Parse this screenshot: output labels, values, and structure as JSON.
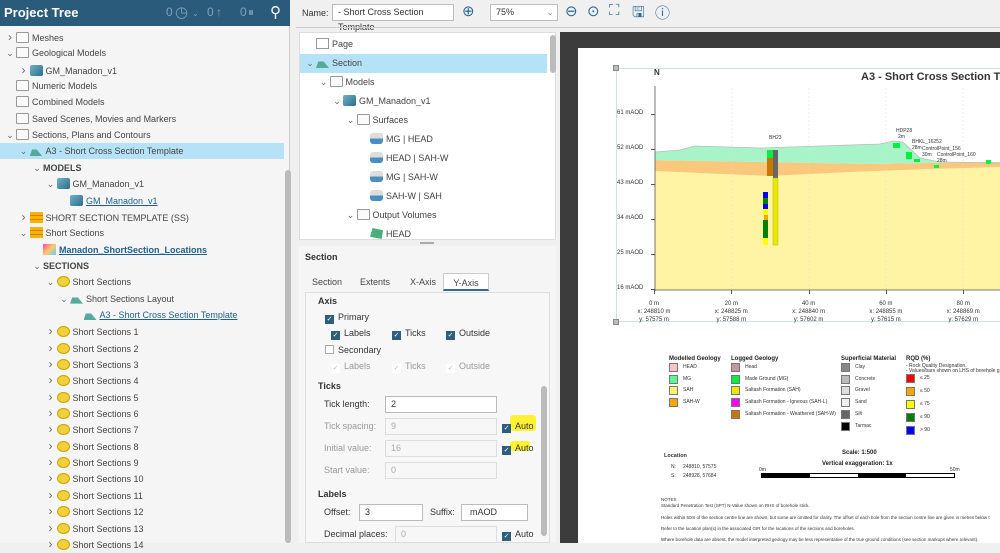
{
  "project_tree": {
    "title": "Project Tree",
    "counters": [
      "0",
      "0",
      "0"
    ],
    "rows": [
      {
        "label": "Meshes",
        "level": 0,
        "chev": "closed",
        "icon": "folder"
      },
      {
        "label": "Geological Models",
        "level": 0,
        "chev": "open",
        "icon": "folder"
      },
      {
        "label": "GM_Manadon_v1",
        "level": 1,
        "chev": "closed",
        "icon": "model"
      },
      {
        "label": "Numeric Models",
        "level": 0,
        "chev": "none",
        "icon": "folder"
      },
      {
        "label": "Combined Models",
        "level": 0,
        "chev": "none",
        "icon": "folder"
      },
      {
        "label": "Saved Scenes, Movies and Markers",
        "level": 0,
        "chev": "none",
        "icon": "folder"
      },
      {
        "label": "Sections, Plans and Contours",
        "level": 0,
        "chev": "open",
        "icon": "folder"
      },
      {
        "label": "A3 - Short Cross Section Template",
        "level": 1,
        "chev": "open",
        "icon": "section",
        "selected": true
      },
      {
        "label": "MODELS",
        "level": 2,
        "chev": "open",
        "icon": "none",
        "style": "bold"
      },
      {
        "label": "GM_Manadon_v1",
        "level": 3,
        "chev": "open",
        "icon": "model"
      },
      {
        "label": "GM_Manadon_v1",
        "level": 4,
        "chev": "none",
        "icon": "model",
        "style": "link"
      },
      {
        "label": "SHORT SECTION TEMPLATE (SS)",
        "level": 1,
        "chev": "closed",
        "icon": "stack"
      },
      {
        "label": "Short Sections",
        "level": 1,
        "chev": "open",
        "icon": "stack"
      },
      {
        "label": "Manadon_ShortSection_Locations",
        "level": 2,
        "chev": "none",
        "icon": "map",
        "style": "boldlink"
      },
      {
        "label": "SECTIONS",
        "level": 2,
        "chev": "open",
        "icon": "none",
        "style": "bold"
      },
      {
        "label": "Short Sections",
        "level": 3,
        "chev": "open",
        "icon": "ss"
      },
      {
        "label": "Short Sections Layout",
        "level": 4,
        "chev": "open",
        "icon": "section"
      },
      {
        "label": "A3 - Short Cross Section Template",
        "level": 5,
        "chev": "none",
        "icon": "section",
        "style": "link"
      },
      {
        "label": "Short Sections 1",
        "level": 3,
        "chev": "closed",
        "icon": "ss"
      },
      {
        "label": "Short Sections 2",
        "level": 3,
        "chev": "closed",
        "icon": "ss"
      },
      {
        "label": "Short Sections 3",
        "level": 3,
        "chev": "closed",
        "icon": "ss"
      },
      {
        "label": "Short Sections 4",
        "level": 3,
        "chev": "closed",
        "icon": "ss"
      },
      {
        "label": "Short Sections 5",
        "level": 3,
        "chev": "closed",
        "icon": "ss"
      },
      {
        "label": "Short Sections 6",
        "level": 3,
        "chev": "closed",
        "icon": "ss"
      },
      {
        "label": "Short Sections 7",
        "level": 3,
        "chev": "closed",
        "icon": "ss"
      },
      {
        "label": "Short Sections 8",
        "level": 3,
        "chev": "closed",
        "icon": "ss"
      },
      {
        "label": "Short Sections 9",
        "level": 3,
        "chev": "closed",
        "icon": "ss"
      },
      {
        "label": "Short Sections 10",
        "level": 3,
        "chev": "closed",
        "icon": "ss"
      },
      {
        "label": "Short Sections 11",
        "level": 3,
        "chev": "closed",
        "icon": "ss"
      },
      {
        "label": "Short Sections 12",
        "level": 3,
        "chev": "closed",
        "icon": "ss"
      },
      {
        "label": "Short Sections 13",
        "level": 3,
        "chev": "closed",
        "icon": "ss"
      },
      {
        "label": "Short Sections 14",
        "level": 3,
        "chev": "closed",
        "icon": "ss"
      }
    ]
  },
  "toolbar": {
    "name_label": "Name:",
    "name_value": "- Short Cross Section Template",
    "zoom_value": "75%"
  },
  "layout_tree": {
    "rows": [
      {
        "label": "Page",
        "level": 0,
        "chev": "none",
        "icon": "page"
      },
      {
        "label": "Section",
        "level": 0,
        "chev": "open",
        "icon": "section",
        "selected": true
      },
      {
        "label": "Models",
        "level": 1,
        "chev": "open",
        "icon": "folder"
      },
      {
        "label": "GM_Manadon_v1",
        "level": 2,
        "chev": "open",
        "icon": "model"
      },
      {
        "label": "Surfaces",
        "level": 3,
        "chev": "open",
        "icon": "folder"
      },
      {
        "label": "MG | HEAD",
        "level": 4,
        "chev": "none",
        "icon": "surf"
      },
      {
        "label": "HEAD | SAH-W",
        "level": 4,
        "chev": "none",
        "icon": "surf"
      },
      {
        "label": "MG | SAH-W",
        "level": 4,
        "chev": "none",
        "icon": "surf"
      },
      {
        "label": "SAH-W | SAH",
        "level": 4,
        "chev": "none",
        "icon": "surf"
      },
      {
        "label": "Output Volumes",
        "level": 3,
        "chev": "open",
        "icon": "folder"
      },
      {
        "label": "HEAD",
        "level": 4,
        "chev": "none",
        "icon": "vol"
      }
    ]
  },
  "props": {
    "title": "Section",
    "tabs": [
      "Section",
      "Extents",
      "X-Axis",
      "Y-Axis"
    ],
    "active_tab": "Y-Axis",
    "axis": {
      "heading": "Axis",
      "primary": "Primary",
      "labels": "Labels",
      "ticks": "Ticks",
      "outside": "Outside",
      "secondary": "Secondary"
    },
    "ticks": {
      "heading": "Ticks",
      "tick_length_label": "Tick length:",
      "tick_length": "2",
      "tick_spacing_label": "Tick spacing:",
      "tick_spacing": "9",
      "initial_value_label": "Initial value:",
      "initial_value": "16",
      "start_value_label": "Start value:",
      "start_value": "0",
      "auto": "Auto"
    },
    "labels": {
      "heading": "Labels",
      "offset_label": "Offset:",
      "offset": "3",
      "suffix_label": "Suffix:",
      "suffix": "mAOD",
      "decimal_label": "Decimal places:",
      "decimal": "0",
      "auto": "Auto"
    }
  },
  "sheet": {
    "north": "N",
    "title": "A3 - Short Cross Section T",
    "y_ticks": [
      "61 mAOD",
      "52 mAOD",
      "43 mAOD",
      "34 mAOD",
      "25 mAOD",
      "16 mAOD"
    ],
    "x_ticks": [
      {
        "d": "0 m",
        "x": "x: 248810 m",
        "y": "y: 57575 m"
      },
      {
        "d": "20 m",
        "x": "x: 248825 m",
        "y": "y: 57588 m"
      },
      {
        "d": "40 m",
        "x": "x: 248840 m",
        "y": "y: 57602 m"
      },
      {
        "d": "60 m",
        "x": "x: 248855 m",
        "y": "y: 57615 m"
      },
      {
        "d": "80 m",
        "x": "x: 248869 m",
        "y": "y: 57629 m"
      }
    ],
    "boreholes": [
      {
        "name": "BH23"
      },
      {
        "name": "HDP28",
        "sub": "2m"
      },
      {
        "name": "BHKL_16252",
        "sub": "28m"
      },
      {
        "name": "ControlPoint_156",
        "sub": "30m"
      },
      {
        "name": "ControlPoint_160",
        "sub": "28m"
      }
    ],
    "legend": {
      "modelled": {
        "title": "Modelled Geology",
        "items": [
          {
            "l": "HEAD",
            "c": "#f8c4c4"
          },
          {
            "l": "MG",
            "c": "#5ef59a"
          },
          {
            "l": "SAH",
            "c": "#fff06a"
          },
          {
            "l": "SAH-W",
            "c": "#ffa500"
          }
        ]
      },
      "logged": {
        "title": "Logged Geology",
        "items": [
          {
            "l": "Head",
            "c": "#c9949b"
          },
          {
            "l": "Made Ground (MG)",
            "c": "#00f040"
          },
          {
            "l": "Saltash Formation (SAH)",
            "c": "#e8e800"
          },
          {
            "l": "Saltash Formation - Igneous (SAH-L)",
            "c": "#ff00ff"
          },
          {
            "l": "Saltash Formation - Weathered (SAH-W)",
            "c": "#c87800"
          }
        ]
      },
      "superficial": {
        "title": "Superficial Material",
        "items": [
          {
            "l": "Clay",
            "c": "#888"
          },
          {
            "l": "Concrete",
            "c": "#bbb"
          },
          {
            "l": "Gravel",
            "c": "#ddd"
          },
          {
            "l": "Sand",
            "c": "#eee"
          },
          {
            "l": "Silt",
            "c": "#666"
          },
          {
            "l": "Tarmac",
            "c": "#000"
          }
        ]
      },
      "rqd": {
        "title": "RQD (%)",
        "notes": [
          "- Rock Quality Designation.",
          "- Values/bars shown on LHS of borehole graph"
        ],
        "items": [
          {
            "l": "≤ 25",
            "c": "#f00"
          },
          {
            "l": "≤ 50",
            "c": "#ffa500"
          },
          {
            "l": "≤ 75",
            "c": "#ff0"
          },
          {
            "l": "≤ 90",
            "c": "#008000"
          },
          {
            "l": "> 90",
            "c": "#00f"
          }
        ]
      }
    },
    "location": {
      "title": "Location",
      "rows": [
        {
          "k": "N:",
          "v": "248810, 57575"
        },
        {
          "k": "S:",
          "v": "248928, 57684"
        }
      ]
    },
    "scale": "Scale: 1:500",
    "vex": "Vertical exaggeration: 1x",
    "bar_start": "0m",
    "bar_end": "50m",
    "notes": [
      "NOTES",
      "Standard Penetration Test (SPT) N-Value shown on RHS of borehole stick.",
      "Holes within 50m of the section centre line are shown, but some are omitted for clarity. The offset of each hole from the section centre line are given in metres below t",
      "Refer to the location plan(s) in the associated GIR for the locations of the sections and boreholes.",
      "Where borehole data are absent, the model interpreted geology may be less representative of the true ground conditions (see section markups where relevant)."
    ]
  }
}
